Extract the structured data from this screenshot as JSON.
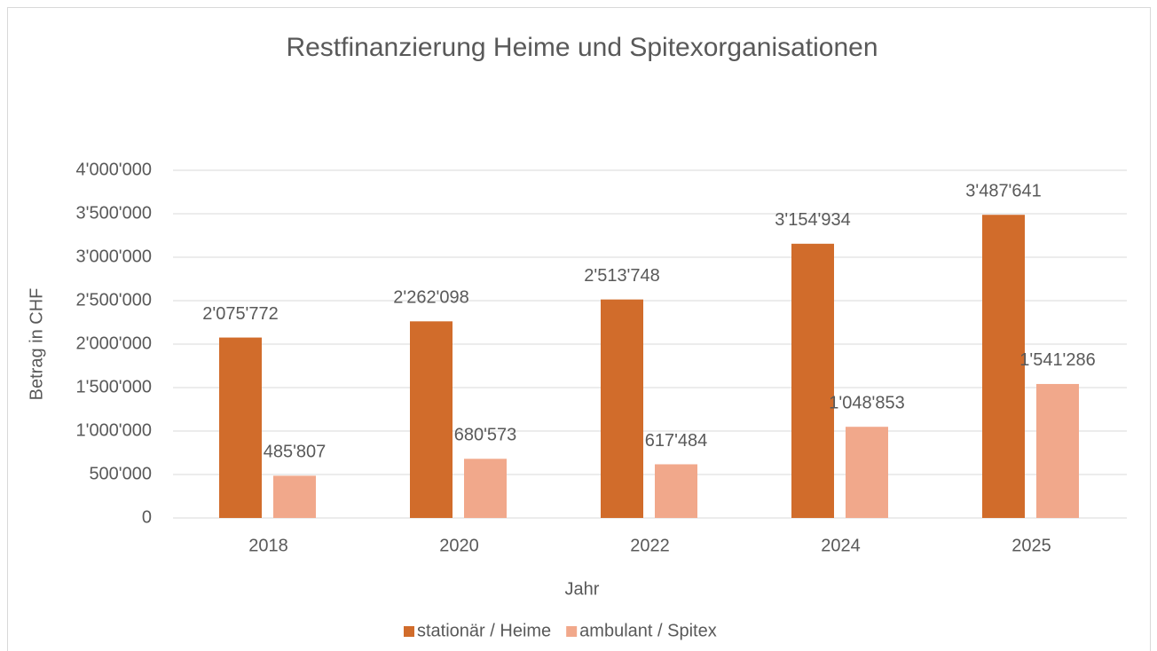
{
  "chart_data": {
    "type": "bar",
    "title": "Restfinanzierung Heime und Spitexorganisationen",
    "xlabel": "Jahr",
    "ylabel": "Betrag in CHF",
    "categories": [
      "2018",
      "2020",
      "2022",
      "2024",
      "2025"
    ],
    "series": [
      {
        "name": "stationär / Heime",
        "color": "#d16c2b",
        "values": [
          2075772,
          2262098,
          2513748,
          3154934,
          3487641
        ],
        "value_labels": [
          "2'075'772",
          "2'262'098",
          "2'513'748",
          "3'154'934",
          "3'487'641"
        ]
      },
      {
        "name": "ambulant / Spitex",
        "color": "#f1a88b",
        "values": [
          485807,
          680573,
          617484,
          1048853,
          1541286
        ],
        "value_labels": [
          "485'807",
          "680'573",
          "617'484",
          "1'048'853",
          "1'541'286"
        ]
      }
    ],
    "ylim": [
      0,
      4000000
    ],
    "yticks": [
      0,
      {
        "value": 500000,
        "label": "500'000"
      },
      {
        "value": 1000000,
        "label": "1'000'000"
      },
      {
        "value": 1500000,
        "label": "1'500'000"
      },
      {
        "value": 2000000,
        "label": "2'000'000"
      },
      {
        "value": 2500000,
        "label": "2'500'000"
      },
      {
        "value": 3000000,
        "label": "3'000'000"
      },
      {
        "value": 3500000,
        "label": "3'500'000"
      },
      {
        "value": 4000000,
        "label": "4'000'000"
      }
    ],
    "grid": true,
    "legend": "bottom"
  }
}
